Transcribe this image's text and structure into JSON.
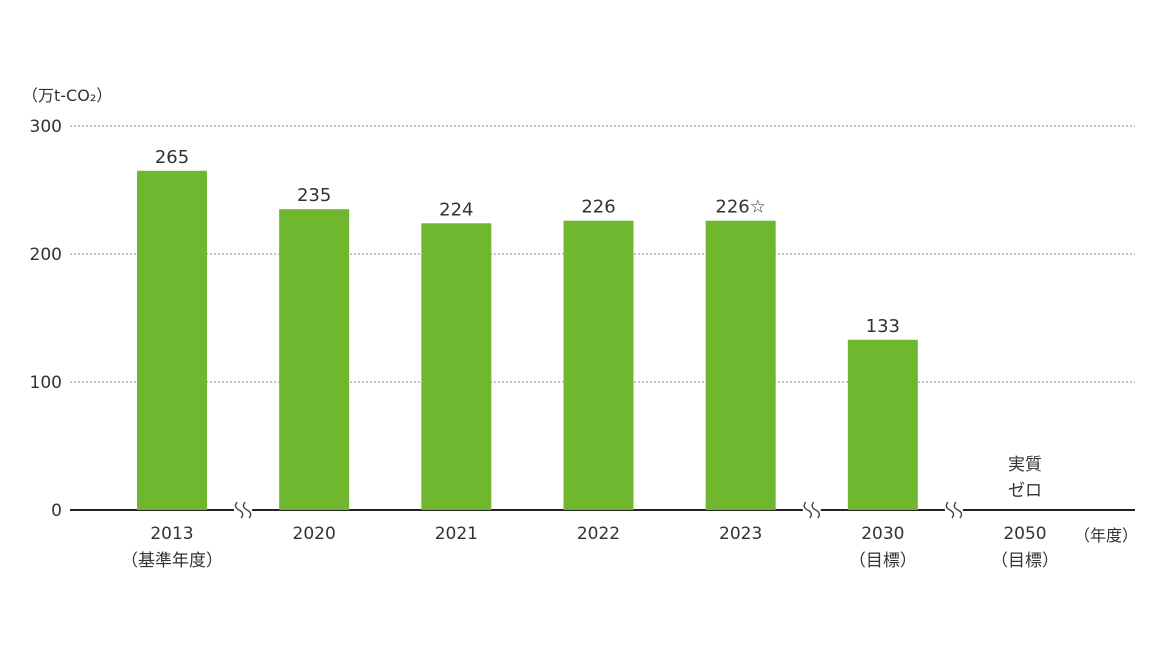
{
  "chart_data": {
    "type": "bar",
    "y_unit_label": "（万t-CO₂）",
    "x_unit_label": "（年度）",
    "ylim": [
      0,
      300
    ],
    "yticks": [
      0,
      100,
      200,
      300
    ],
    "grid": true,
    "bar_color": "#6fb72e",
    "categories": [
      {
        "label": "2013",
        "sublabel": "（基準年度）",
        "value": 265,
        "value_label": "265",
        "break_after": true
      },
      {
        "label": "2020",
        "sublabel": "",
        "value": 235,
        "value_label": "235",
        "break_after": false
      },
      {
        "label": "2021",
        "sublabel": "",
        "value": 224,
        "value_label": "224",
        "break_after": false
      },
      {
        "label": "2022",
        "sublabel": "",
        "value": 226,
        "value_label": "226",
        "break_after": false
      },
      {
        "label": "2023",
        "sublabel": "",
        "value": 226,
        "value_label": "226☆",
        "break_after": true
      },
      {
        "label": "2030",
        "sublabel": "（目標）",
        "value": 133,
        "value_label": "133",
        "break_after": true
      },
      {
        "label": "2050",
        "sublabel": "（目標）",
        "value": 0,
        "value_label": "実質\nゼロ",
        "break_after": false
      }
    ]
  }
}
